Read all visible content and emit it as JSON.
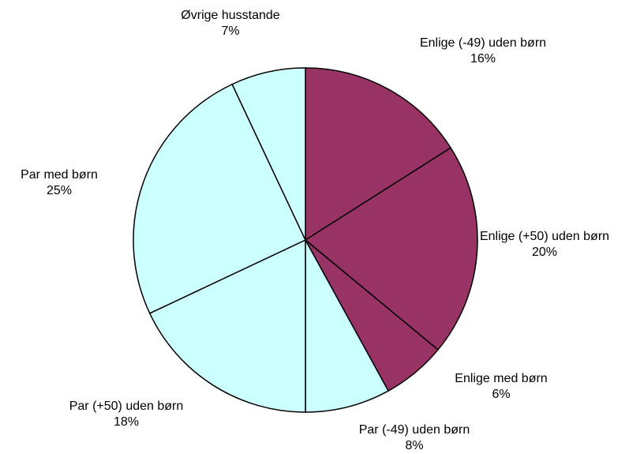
{
  "chart_data": {
    "type": "pie",
    "categories": [
      "Enlige (-49) uden børn",
      "Enlige (+50) uden børn",
      "Enlige med børn",
      "Par (-49) uden børn",
      "Par (+50) uden børn",
      "Par med børn",
      "Øvrige husstande"
    ],
    "values": [
      16,
      20,
      6,
      8,
      18,
      25,
      7
    ],
    "value_labels": [
      "16%",
      "20%",
      "6%",
      "8%",
      "18%",
      "25%",
      "7%"
    ],
    "colors": [
      "#993366",
      "#993366",
      "#993366",
      "#ccffff",
      "#ccffff",
      "#ccffff",
      "#ccffff"
    ]
  }
}
